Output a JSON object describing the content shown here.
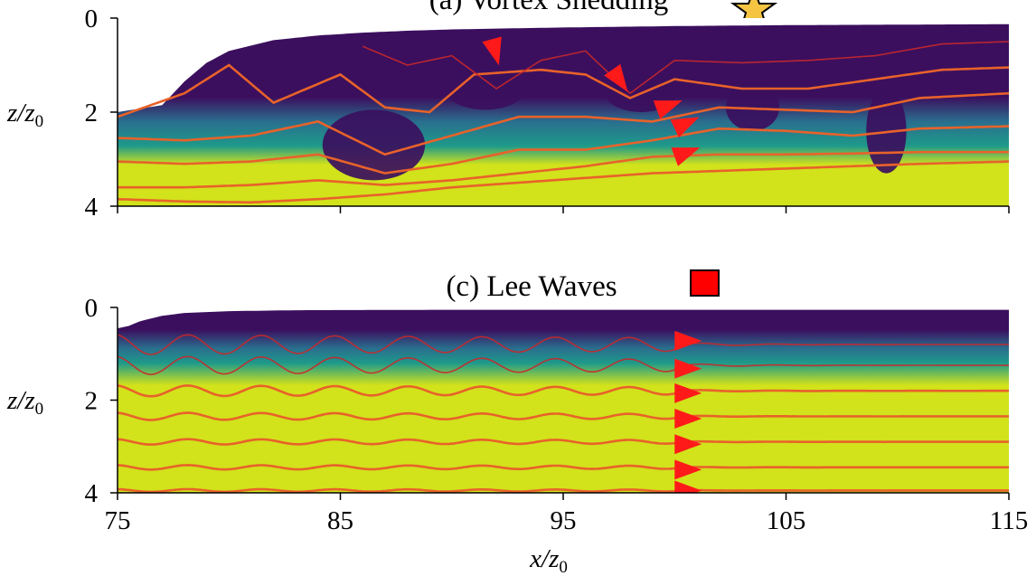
{
  "chart_data": [
    {
      "panel_id": "a",
      "type": "heatmap",
      "title": "(a) Vortex Shedding",
      "marker": {
        "shape": "star",
        "color": "#f5c542"
      },
      "xlim": [
        75,
        115
      ],
      "ylim": [
        4,
        0
      ],
      "xticks": [
        75,
        85,
        95,
        105,
        115
      ],
      "yticks": [
        0,
        2,
        4
      ],
      "ytick_labels": [
        "0",
        "2",
        "4"
      ],
      "ylabel": "z/z0",
      "ylabel_main": "z/z",
      "ylabel_sub": "0",
      "surface_profile": {
        "x": [
          75,
          77,
          78,
          79,
          80,
          82,
          84,
          86,
          88,
          90,
          95,
          100,
          105,
          110,
          115
        ],
        "z": [
          2.0,
          1.85,
          1.35,
          0.95,
          0.7,
          0.47,
          0.37,
          0.31,
          0.27,
          0.24,
          0.2,
          0.17,
          0.15,
          0.14,
          0.13
        ]
      },
      "streamlines": [
        {
          "x": [
            75,
            78,
            81,
            84,
            87,
            90,
            93,
            96,
            99,
            102,
            105,
            108,
            111,
            115
          ],
          "z": [
            3.85,
            3.9,
            3.92,
            3.85,
            3.75,
            3.6,
            3.5,
            3.4,
            3.3,
            3.25,
            3.2,
            3.15,
            3.1,
            3.05
          ]
        },
        {
          "x": [
            75,
            78,
            81,
            84,
            87,
            90,
            93,
            96,
            99,
            102,
            105,
            108,
            111,
            115
          ],
          "z": [
            3.6,
            3.6,
            3.55,
            3.45,
            3.55,
            3.45,
            3.3,
            3.15,
            2.95,
            2.9,
            2.9,
            2.88,
            2.85,
            2.85
          ]
        },
        {
          "x": [
            75,
            78,
            81,
            84,
            87,
            90,
            93,
            96,
            99,
            102,
            105,
            108,
            111,
            115
          ],
          "z": [
            3.05,
            3.1,
            3.05,
            2.9,
            3.3,
            3.1,
            2.8,
            2.8,
            2.6,
            2.35,
            2.4,
            2.5,
            2.35,
            2.3
          ]
        },
        {
          "x": [
            75,
            78,
            81,
            84,
            87,
            90,
            93,
            96,
            99,
            102,
            105,
            108,
            111,
            115
          ],
          "z": [
            2.55,
            2.6,
            2.5,
            2.2,
            2.9,
            2.5,
            2.1,
            2.1,
            2.2,
            1.9,
            1.95,
            2.0,
            1.7,
            1.6
          ]
        },
        {
          "x": [
            75,
            78,
            80,
            82,
            85,
            87,
            89,
            91,
            94,
            96,
            98,
            100,
            103,
            106,
            109,
            112,
            115
          ],
          "z": [
            2.1,
            1.6,
            1.0,
            1.8,
            1.2,
            1.9,
            2.0,
            1.2,
            1.1,
            1.2,
            1.7,
            1.3,
            1.5,
            1.5,
            1.3,
            1.1,
            1.05
          ]
        },
        {
          "x": [
            86,
            88,
            90,
            92,
            94,
            96,
            98,
            100,
            103,
            106,
            109,
            112,
            115
          ],
          "z": [
            0.6,
            1.0,
            0.8,
            1.5,
            0.9,
            0.7,
            1.6,
            0.9,
            0.95,
            0.9,
            0.8,
            0.55,
            0.5
          ]
        }
      ],
      "arrows": [
        {
          "x": 91.8,
          "z": 0.45,
          "dir_deg": 75
        },
        {
          "x": 97.2,
          "z": 1.1,
          "dir_deg": 55
        },
        {
          "x": 99.2,
          "z": 1.95,
          "dir_deg": -20
        },
        {
          "x": 100,
          "z": 2.35,
          "dir_deg": -25
        },
        {
          "x": 100,
          "z": 2.95,
          "dir_deg": -20
        }
      ]
    },
    {
      "panel_id": "c",
      "type": "heatmap",
      "title": "(c) Lee Waves",
      "marker": {
        "shape": "square",
        "color": "#ff0000"
      },
      "xlim": [
        75,
        115
      ],
      "ylim": [
        4,
        0
      ],
      "xticks": [
        75,
        85,
        95,
        105,
        115
      ],
      "xtick_labels": [
        "75",
        "85",
        "95",
        "105",
        "115"
      ],
      "yticks": [
        0,
        2,
        4
      ],
      "ytick_labels": [
        "0",
        "2",
        "4"
      ],
      "xlabel": "x/z0",
      "xlabel_main": "x/z",
      "xlabel_sub": "0",
      "ylabel": "z/z0",
      "ylabel_main": "z/z",
      "ylabel_sub": "0",
      "surface_profile": {
        "x": [
          75,
          75.5,
          76,
          77,
          78,
          80,
          83,
          90,
          100,
          115
        ],
        "z": [
          0.45,
          0.4,
          0.3,
          0.18,
          0.12,
          0.08,
          0.06,
          0.05,
          0.05,
          0.05
        ]
      },
      "streamlines": [
        {
          "base": 0.8,
          "amp": 0.22,
          "decay_x": 100
        },
        {
          "base": 1.25,
          "amp": 0.2,
          "decay_x": 100
        },
        {
          "base": 1.8,
          "amp": 0.12,
          "decay_x": 100
        },
        {
          "base": 2.35,
          "amp": 0.08,
          "decay_x": 100
        },
        {
          "base": 2.9,
          "amp": 0.06,
          "decay_x": 100
        },
        {
          "base": 3.45,
          "amp": 0.05,
          "decay_x": 100
        },
        {
          "base": 3.95,
          "amp": 0.03,
          "decay_x": 100
        }
      ],
      "wave_period": 3.3,
      "arrows": [
        {
          "x": 100,
          "z": 0.72,
          "dir_deg": 0
        },
        {
          "x": 100,
          "z": 1.32,
          "dir_deg": 0
        },
        {
          "x": 100,
          "z": 1.85,
          "dir_deg": 0
        },
        {
          "x": 100,
          "z": 2.4,
          "dir_deg": 0
        },
        {
          "x": 100,
          "z": 2.95,
          "dir_deg": 0
        },
        {
          "x": 100,
          "z": 3.5,
          "dir_deg": 0
        },
        {
          "x": 100,
          "z": 3.95,
          "dir_deg": 0
        }
      ]
    }
  ],
  "colors": {
    "dark": "#3b0f5e",
    "mid": "#1e9a8a",
    "light": "#d2e21b",
    "streamline": "#e8622a",
    "streamline_upper": "#c8282b",
    "arrow": "#ff1a1a"
  }
}
